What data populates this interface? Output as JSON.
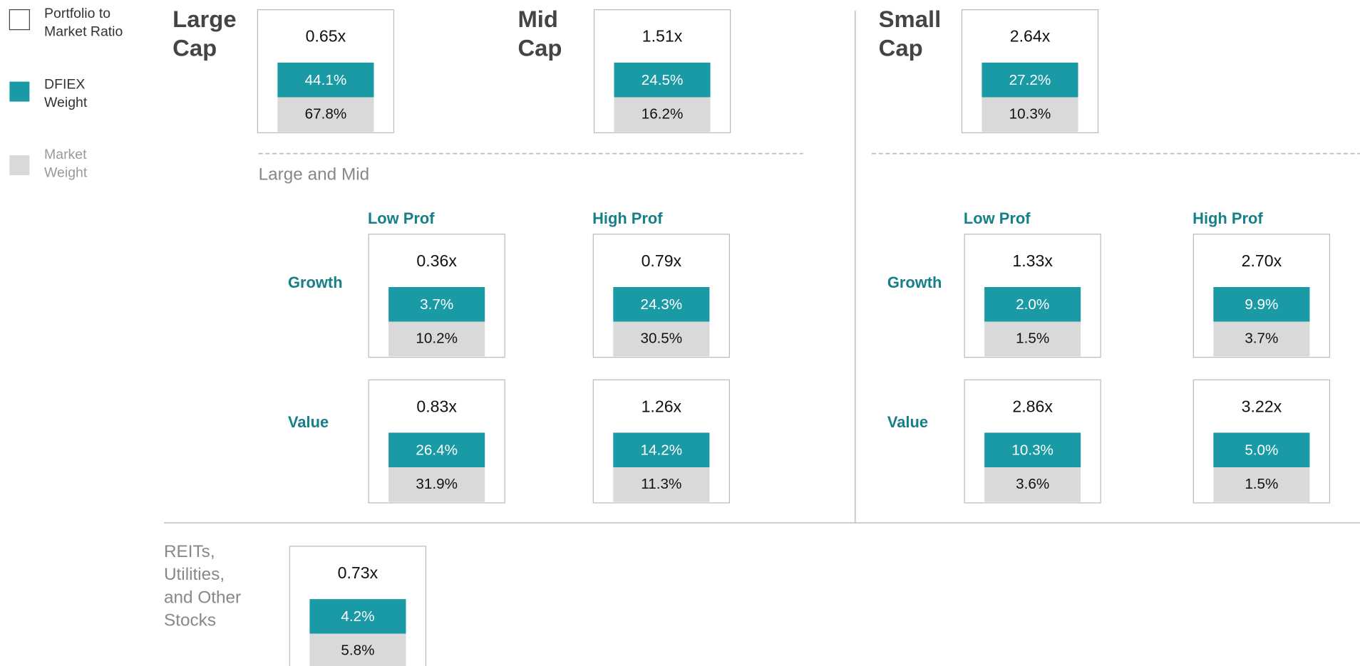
{
  "legend": [
    {
      "lines": [
        "Portfolio to",
        "Market Ratio"
      ]
    },
    {
      "lines": [
        "DFIEX",
        "Weight"
      ]
    },
    {
      "lines": [
        "Market",
        "Weight"
      ]
    }
  ],
  "caps": [
    {
      "lines": [
        "Large",
        "Cap"
      ],
      "box": {
        "ratio": "0.65x",
        "fund": "44.1%",
        "market": "67.8%"
      }
    },
    {
      "lines": [
        "Mid",
        "Cap"
      ],
      "box": {
        "ratio": "1.51x",
        "fund": "24.5%",
        "market": "16.2%"
      }
    },
    {
      "lines": [
        "Small",
        "Cap"
      ],
      "box": {
        "ratio": "2.64x",
        "fund": "27.2%",
        "market": "10.3%"
      }
    }
  ],
  "large_and_mid": {
    "title": "Large and Mid",
    "columns": [
      "Low Prof",
      "High Prof"
    ],
    "rows": [
      "Growth",
      "Value"
    ],
    "boxes": [
      [
        {
          "ratio": "0.36x",
          "fund": "3.7%",
          "market": "10.2%"
        },
        {
          "ratio": "0.79x",
          "fund": "24.3%",
          "market": "30.5%"
        }
      ],
      [
        {
          "ratio": "0.83x",
          "fund": "26.4%",
          "market": "31.9%"
        },
        {
          "ratio": "1.26x",
          "fund": "14.2%",
          "market": "11.3%"
        }
      ]
    ]
  },
  "small": {
    "columns": [
      "Low Prof",
      "High Prof"
    ],
    "rows": [
      "Growth",
      "Value"
    ],
    "boxes": [
      [
        {
          "ratio": "1.33x",
          "fund": "2.0%",
          "market": "1.5%"
        },
        {
          "ratio": "2.70x",
          "fund": "9.9%",
          "market": "3.7%"
        }
      ],
      [
        {
          "ratio": "2.86x",
          "fund": "10.3%",
          "market": "3.6%"
        },
        {
          "ratio": "3.22x",
          "fund": "5.0%",
          "market": "1.5%"
        }
      ]
    ]
  },
  "reits": {
    "lines": [
      "REITs,",
      "Utilities,",
      "and Other",
      "Stocks"
    ],
    "box": {
      "ratio": "0.73x",
      "fund": "4.2%",
      "market": "5.8%"
    }
  }
}
